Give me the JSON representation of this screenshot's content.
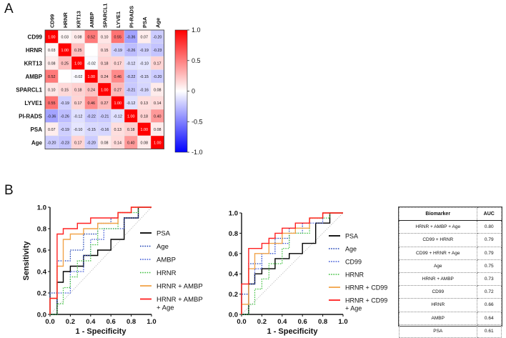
{
  "panel_a_label": "A",
  "panel_b_label": "B",
  "heatmap": {
    "variables": [
      "CD99",
      "HRNR",
      "KRT13",
      "AMBP",
      "SPARCL1",
      "LYVE1",
      "PI-RADS",
      "PSA",
      "Age"
    ],
    "matrix": [
      [
        "1.00",
        "0.03",
        "0.08",
        "0.52",
        "0.10",
        "0.55",
        "-0.36",
        "0.07",
        "-0.20"
      ],
      [
        "0.03",
        "1.00",
        "0.25",
        "",
        "0.15",
        "-0.19",
        "-0.26",
        "-0.19",
        "-0.23"
      ],
      [
        "0.08",
        "0.25",
        "1.00",
        "-0.02",
        "0.18",
        "0.17",
        "-0.12",
        "-0.10",
        "0.17"
      ],
      [
        "0.52",
        "",
        "-0.02",
        "1.00",
        "0.24",
        "0.46",
        "-0.22",
        "-0.15",
        "-0.20"
      ],
      [
        "0.10",
        "0.15",
        "0.18",
        "0.24",
        "1.00",
        "0.27",
        "-0.21",
        "-0.16",
        "0.08"
      ],
      [
        "0.55",
        "-0.19",
        "0.17",
        "0.46",
        "0.27",
        "1.00",
        "-0.12",
        "0.13",
        "0.14"
      ],
      [
        "-0.36",
        "-0.26",
        "-0.12",
        "-0.22",
        "-0.21",
        "-0.12",
        "1.00",
        "0.18",
        "0.40"
      ],
      [
        "0.07",
        "-0.19",
        "-0.10",
        "-0.15",
        "-0.16",
        "0.13",
        "0.18",
        "1.00",
        "0.08"
      ],
      [
        "-0.20",
        "-0.23",
        "0.17",
        "-0.20",
        "0.08",
        "0.14",
        "0.40",
        "0.08",
        "1.00"
      ]
    ],
    "colorbar_ticks": [
      "1.0",
      "0.5",
      "0",
      "-0.5",
      "-1.0"
    ],
    "colors": {
      "pos": "#ff0000",
      "neg": "#0000ff",
      "mid": "#ffffff"
    }
  },
  "chart_data": [
    {
      "type": "heatmap",
      "title": "",
      "rows": [
        "CD99",
        "HRNR",
        "KRT13",
        "AMBP",
        "SPARCL1",
        "LYVE1",
        "PI-RADS",
        "PSA",
        "Age"
      ],
      "columns": [
        "CD99",
        "HRNR",
        "KRT13",
        "AMBP",
        "SPARCL1",
        "LYVE1",
        "PI-RADS",
        "PSA",
        "Age"
      ],
      "range": [
        -1.0,
        1.0
      ]
    },
    {
      "type": "line",
      "xlabel": "1 - Specificity",
      "ylabel": "Sensitivity",
      "xlim": [
        0,
        1
      ],
      "ylim": [
        0,
        1
      ],
      "xticks": [
        "0.0",
        "0.2",
        "0.4",
        "0.6",
        "0.8",
        "1.0"
      ],
      "yticks": [
        "0.0",
        "0.2",
        "0.4",
        "0.6",
        "0.8",
        "1.0"
      ],
      "series": [
        {
          "name": "PSA",
          "color": "#000000",
          "dash": "solid",
          "x": [
            0,
            0.07,
            0.07,
            0.13,
            0.13,
            0.2,
            0.2,
            0.33,
            0.33,
            0.47,
            0.47,
            0.6,
            0.6,
            0.73,
            0.73,
            0.87,
            0.87,
            1
          ],
          "y": [
            0,
            0,
            0.3,
            0.3,
            0.4,
            0.4,
            0.45,
            0.45,
            0.55,
            0.55,
            0.6,
            0.6,
            0.7,
            0.7,
            0.9,
            0.9,
            1,
            1
          ]
        },
        {
          "name": "Age",
          "color": "#1a3fb3",
          "dash": "dotted",
          "x": [
            0,
            0,
            0.07,
            0.07,
            0.2,
            0.2,
            0.33,
            0.33,
            0.47,
            0.47,
            0.6,
            0.6,
            0.67,
            0.67,
            0.8,
            0.8,
            1
          ],
          "y": [
            0,
            0.2,
            0.2,
            0.5,
            0.5,
            0.6,
            0.6,
            0.75,
            0.75,
            0.85,
            0.85,
            0.9,
            0.9,
            0.95,
            0.95,
            1,
            1
          ]
        },
        {
          "name": "AMBP",
          "color": "#3a55d6",
          "dash": "dotted",
          "x": [
            0,
            0.07,
            0.07,
            0.2,
            0.2,
            0.33,
            0.33,
            0.4,
            0.4,
            0.53,
            0.53,
            0.73,
            0.73,
            0.87,
            0.87,
            1
          ],
          "y": [
            0,
            0,
            0.2,
            0.2,
            0.4,
            0.4,
            0.55,
            0.55,
            0.7,
            0.7,
            0.8,
            0.8,
            0.9,
            0.9,
            1,
            1
          ]
        },
        {
          "name": "HRNR",
          "color": "#3cbf3c",
          "dash": "dotted",
          "x": [
            0,
            0.07,
            0.07,
            0.13,
            0.13,
            0.2,
            0.2,
            0.27,
            0.27,
            0.4,
            0.4,
            0.47,
            0.47,
            0.67,
            0.67,
            0.87,
            0.87,
            1
          ],
          "y": [
            0,
            0,
            0.1,
            0.1,
            0.25,
            0.25,
            0.35,
            0.35,
            0.5,
            0.5,
            0.65,
            0.65,
            0.8,
            0.8,
            0.95,
            0.95,
            1,
            1
          ]
        },
        {
          "name": "HRNR + AMBP",
          "color": "#f2a44a",
          "dash": "solid",
          "x": [
            0,
            0,
            0.07,
            0.07,
            0.13,
            0.13,
            0.2,
            0.2,
            0.33,
            0.33,
            0.47,
            0.47,
            0.67,
            0.67,
            0.8,
            0.8,
            1
          ],
          "y": [
            0,
            0.15,
            0.15,
            0.45,
            0.45,
            0.7,
            0.7,
            0.75,
            0.75,
            0.8,
            0.8,
            0.85,
            0.85,
            0.95,
            0.95,
            1,
            1
          ]
        },
        {
          "name": "HRNR + AMBP + Age",
          "color": "#ff2020",
          "dash": "solid",
          "x": [
            0,
            0,
            0.07,
            0.07,
            0.13,
            0.13,
            0.27,
            0.27,
            0.4,
            0.4,
            0.53,
            0.53,
            0.67,
            0.67,
            0.8,
            0.8,
            1
          ],
          "y": [
            0,
            0.15,
            0.15,
            0.75,
            0.75,
            0.8,
            0.8,
            0.85,
            0.85,
            0.9,
            0.9,
            0.9,
            0.9,
            0.95,
            0.95,
            1,
            1
          ]
        }
      ]
    },
    {
      "type": "line",
      "xlabel": "1 - Specificity",
      "ylabel": "",
      "xlim": [
        0,
        1
      ],
      "ylim": [
        0,
        1
      ],
      "xticks": [
        "0.0",
        "0.2",
        "0.4",
        "0.6",
        "0.8",
        "1.0"
      ],
      "yticks": [
        "0.0",
        "0.2",
        "0.4",
        "0.6",
        "0.8",
        "1.0"
      ],
      "series": [
        {
          "name": "PSA",
          "color": "#000000",
          "dash": "solid",
          "x": [
            0,
            0.07,
            0.07,
            0.13,
            0.13,
            0.2,
            0.2,
            0.33,
            0.33,
            0.47,
            0.47,
            0.6,
            0.6,
            0.73,
            0.73,
            0.87,
            0.87,
            1
          ],
          "y": [
            0,
            0,
            0.3,
            0.3,
            0.4,
            0.4,
            0.45,
            0.45,
            0.55,
            0.55,
            0.6,
            0.6,
            0.7,
            0.7,
            0.9,
            0.9,
            1,
            1
          ]
        },
        {
          "name": "Age",
          "color": "#1a3fb3",
          "dash": "dotted",
          "x": [
            0,
            0,
            0.07,
            0.07,
            0.2,
            0.2,
            0.33,
            0.33,
            0.47,
            0.47,
            0.6,
            0.6,
            0.67,
            0.67,
            0.8,
            0.8,
            1
          ],
          "y": [
            0,
            0.2,
            0.2,
            0.5,
            0.5,
            0.6,
            0.6,
            0.75,
            0.75,
            0.85,
            0.85,
            0.9,
            0.9,
            0.95,
            0.95,
            1,
            1
          ]
        },
        {
          "name": "CD99",
          "color": "#3a55d6",
          "dash": "dotted",
          "x": [
            0,
            0.07,
            0.07,
            0.13,
            0.13,
            0.2,
            0.2,
            0.33,
            0.33,
            0.47,
            0.47,
            0.6,
            0.6,
            0.8,
            0.8,
            1
          ],
          "y": [
            0,
            0,
            0.3,
            0.3,
            0.45,
            0.45,
            0.6,
            0.6,
            0.7,
            0.7,
            0.8,
            0.8,
            0.9,
            0.9,
            1,
            1
          ]
        },
        {
          "name": "HRNR",
          "color": "#3cbf3c",
          "dash": "dotted",
          "x": [
            0,
            0.07,
            0.07,
            0.13,
            0.13,
            0.2,
            0.2,
            0.27,
            0.27,
            0.4,
            0.4,
            0.47,
            0.47,
            0.67,
            0.67,
            0.87,
            0.87,
            1
          ],
          "y": [
            0,
            0,
            0.1,
            0.1,
            0.25,
            0.25,
            0.35,
            0.35,
            0.5,
            0.5,
            0.65,
            0.65,
            0.8,
            0.8,
            0.95,
            0.95,
            1,
            1
          ]
        },
        {
          "name": "HRNR + CD99",
          "color": "#f2a44a",
          "dash": "solid",
          "x": [
            0,
            0,
            0.07,
            0.07,
            0.13,
            0.13,
            0.27,
            0.27,
            0.4,
            0.4,
            0.53,
            0.53,
            0.67,
            0.67,
            0.8,
            0.8,
            1
          ],
          "y": [
            0,
            0.1,
            0.1,
            0.45,
            0.45,
            0.6,
            0.6,
            0.7,
            0.7,
            0.8,
            0.8,
            0.85,
            0.85,
            0.95,
            0.95,
            1,
            1
          ]
        },
        {
          "name": "HRNR + CD99 + Age",
          "color": "#ff2020",
          "dash": "solid",
          "x": [
            0,
            0,
            0.07,
            0.07,
            0.2,
            0.2,
            0.27,
            0.27,
            0.33,
            0.33,
            0.4,
            0.4,
            0.53,
            0.53,
            0.67,
            0.67,
            0.8,
            0.8,
            1
          ],
          "y": [
            0,
            0.3,
            0.3,
            0.65,
            0.65,
            0.7,
            0.7,
            0.75,
            0.75,
            0.8,
            0.8,
            0.85,
            0.85,
            0.9,
            0.9,
            0.95,
            0.95,
            1,
            1
          ]
        }
      ]
    },
    {
      "type": "table",
      "columns": [
        "Biomarker",
        "AUC"
      ],
      "rows": [
        [
          "HRNR + AMBP + Age",
          "0.80"
        ],
        [
          "CD99 + HRNR",
          "0.79"
        ],
        [
          "CD99 + HRNR + Age",
          "0.79"
        ],
        [
          "Age",
          "0.75"
        ],
        [
          "HRNR + AMBP",
          "0.73"
        ],
        [
          "CD99",
          "0.72"
        ],
        [
          "HRNR",
          "0.66"
        ],
        [
          "AMBP",
          "0.64"
        ],
        [
          "PSA",
          "0.61"
        ]
      ]
    }
  ],
  "roc_legend_labels": [
    [
      "PSA",
      "Age",
      "AMBP",
      "HRNR",
      "HRNR + AMBP",
      "HRNR + AMBP\n+ Age"
    ],
    [
      "PSA",
      "Age",
      "CD99",
      "HRNR",
      "HRNR + CD99",
      "HRNR + CD99\n+ Age"
    ]
  ]
}
